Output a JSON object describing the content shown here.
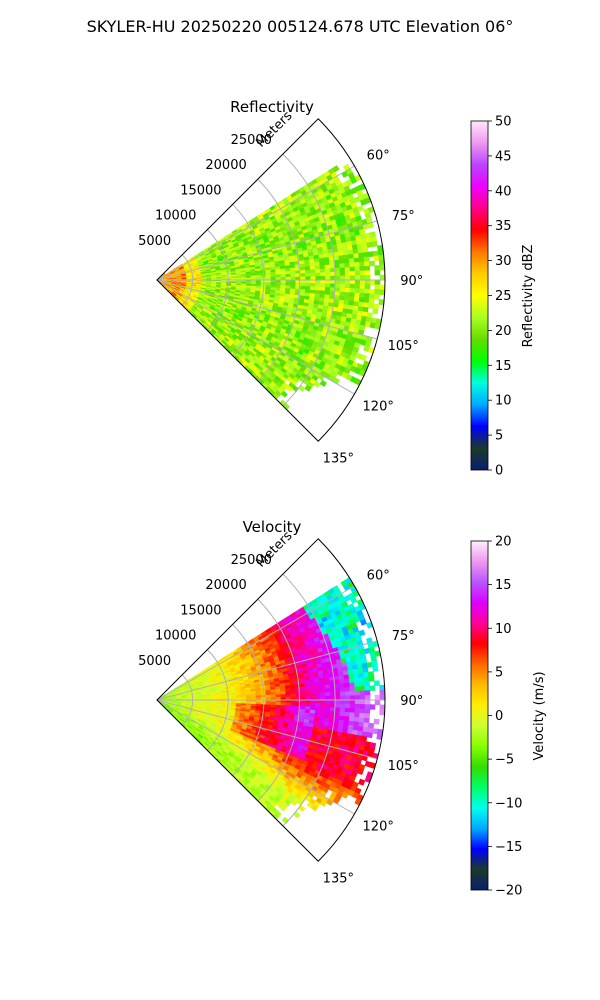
{
  "figure": {
    "title": "SKYLER-HU  20250220  005124.678 UTC Elevation 06°"
  },
  "chart_data": [
    {
      "type": "heatmap",
      "projection": "polar-sector",
      "title": "Reflectivity",
      "radial_label": "Meters",
      "r_ticks": [
        5000,
        10000,
        15000,
        20000,
        25000
      ],
      "r_max": 32000,
      "theta_ticks": [
        60,
        75,
        90,
        105,
        120,
        135
      ],
      "theta_range_deg": [
        45,
        135
      ],
      "colorbar": {
        "label": "Reflectivity dBZ",
        "min": 0,
        "max": 50,
        "ticks": [
          0,
          5,
          10,
          15,
          20,
          25,
          30,
          35,
          40,
          45,
          50
        ]
      },
      "field": {
        "description": "mostly 18-28 dBZ across sector; higher 28-36 dBZ near origin",
        "near_range_m": [
          0,
          4000
        ],
        "near_value_dbz": [
          26,
          36
        ],
        "bulk_value_dbz": [
          18,
          28
        ]
      },
      "grid": true
    },
    {
      "type": "heatmap",
      "projection": "polar-sector",
      "title": "Velocity",
      "radial_label": "Meters",
      "r_ticks": [
        5000,
        10000,
        15000,
        20000,
        25000
      ],
      "r_max": 32000,
      "theta_ticks": [
        60,
        75,
        90,
        105,
        120,
        135
      ],
      "theta_range_deg": [
        45,
        135
      ],
      "colorbar": {
        "label": "Velocity (m/s)",
        "min": -20,
        "max": 20,
        "ticks": [
          -20,
          -15,
          -10,
          -5,
          0,
          5,
          10,
          15,
          20
        ]
      },
      "field": {
        "description": "positive velocities (red/magenta, 8-16 m/s) mid-range toward 65-100°, folding to -8 to -12 m/s beyond ~25 km near 60-85°; near range about -3 to 0 m/s; lower angles 115-135° about -5 to 2 m/s",
        "bulk_value_ms": [
          -6,
          16
        ]
      },
      "grid": true
    }
  ],
  "colors": {
    "reflectivity_stops": [
      "#0a1f6e",
      "#1b3a2a",
      "#0000ff",
      "#00aaff",
      "#00ffe0",
      "#00ff00",
      "#66dd00",
      "#aaff22",
      "#ffff00",
      "#ffcc00",
      "#ff7700",
      "#ff0000",
      "#ff0088",
      "#ee00ff",
      "#bb44ff",
      "#ee99ee",
      "#ffe8ff"
    ],
    "velocity_stops": [
      "#0a1f6e",
      "#1b3a2a",
      "#0000ff",
      "#00aaff",
      "#00ffee",
      "#00ff66",
      "#33dd00",
      "#88ff00",
      "#ccff33",
      "#ffee00",
      "#ffbb00",
      "#ff6600",
      "#ff0000",
      "#ff0099",
      "#dd00ff",
      "#bb55ff",
      "#ee99ee",
      "#ffeeff"
    ],
    "grid": "#b0b0b0"
  }
}
